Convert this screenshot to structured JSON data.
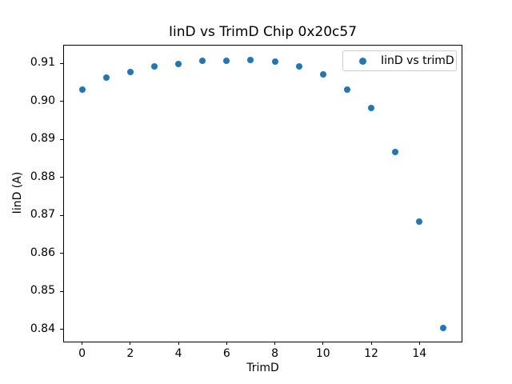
{
  "chart_data": {
    "type": "scatter",
    "title": "IinD vs TrimD Chip 0x20c57",
    "xlabel": "TrimD",
    "ylabel": "IinD (A)",
    "legend": [
      "IinD vs trimD"
    ],
    "legend_position": "upper right",
    "x": [
      0,
      1,
      2,
      3,
      4,
      5,
      6,
      7,
      8,
      9,
      10,
      11,
      12,
      13,
      14,
      15
    ],
    "y": [
      0.9031,
      0.9063,
      0.9077,
      0.9092,
      0.9098,
      0.9107,
      0.9107,
      0.9109,
      0.9105,
      0.9092,
      0.9071,
      0.9031,
      0.8983,
      0.8867,
      0.8684,
      0.8404
    ],
    "series_name": "IinD vs trimD",
    "xlim": [
      -0.75,
      15.75
    ],
    "ylim": [
      0.8368,
      0.9147
    ],
    "xticks": [
      0,
      2,
      4,
      6,
      8,
      10,
      12,
      14
    ],
    "yticks": [
      0.84,
      0.85,
      0.86,
      0.87,
      0.88,
      0.89,
      0.9,
      0.91
    ],
    "ytick_decimals": 2,
    "grid": false,
    "marker_color": "#1f77b4",
    "background_color": "#ffffff"
  }
}
